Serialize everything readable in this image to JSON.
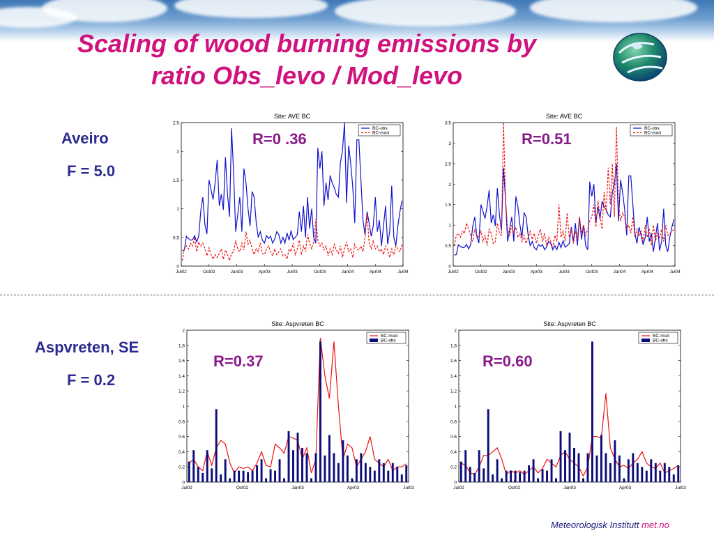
{
  "title_line1": "Scaling of wood burning emissions by",
  "title_line2": "ratio Obs_levo / Mod_levo",
  "sites": [
    {
      "name": "Aveiro",
      "factor": "F = 5.0"
    },
    {
      "name": "Aspvreten, SE",
      "factor": "F = 0.2"
    }
  ],
  "r_labels": [
    "R=0 .36",
    "R=0.51",
    "R=0.37",
    "R=0.60"
  ],
  "footer": {
    "org": "Meteorologisk Institutt",
    "short": "met.no"
  },
  "colors": {
    "title": "#d0127f",
    "obs_line": "#1111cc",
    "mod_line": "#ee1111",
    "bar": "#0c0c7a"
  },
  "chart_data": [
    {
      "type": "line",
      "title": "Site: AVE BC",
      "xlim": [
        0,
        24
      ],
      "ylim": [
        0,
        2.5
      ],
      "yticks": [
        "0",
        "0.5",
        "1",
        "1.5",
        "2",
        "2.5"
      ],
      "xtick_positions": [
        0,
        3,
        6,
        9,
        12,
        15,
        18,
        21,
        24
      ],
      "xtick_labels": [
        "Jul02",
        "Oct02",
        "Jan03",
        "Apr03",
        "Jul03",
        "Oct03",
        "Jan04",
        "Apr04",
        "Jul04"
      ],
      "legend_position": "top-right",
      "series": [
        {
          "name": "BC-obs",
          "style": "solid",
          "color": "#1111cc",
          "values": [
            0.27,
            0.28,
            0.52,
            0.48,
            0.45,
            0.46,
            0.53,
            0.42,
            0.52,
            0.97,
            1.2,
            0.72,
            0.56,
            1.5,
            1.33,
            1.16,
            1.46,
            1.85,
            1.05,
            1.25,
            0.98,
            1.9,
            1.25,
            0.86,
            2.4,
            1.6,
            0.6,
            0.9,
            1.2,
            0.6,
            1.7,
            1.45,
            1.0,
            0.7,
            1.3,
            1.2,
            0.75,
            0.5,
            0.6,
            0.45,
            0.4,
            0.53,
            0.48,
            0.52,
            0.4,
            0.47,
            0.6,
            0.55,
            0.4,
            0.5,
            0.4,
            0.58,
            0.45,
            0.62,
            0.46,
            0.5,
            0.55,
            0.95,
            0.6,
            1.05,
            0.5,
            1.2,
            0.65,
            1.0,
            0.5,
            0.4,
            2.06,
            1.7,
            2.0,
            1.05,
            1.45,
            1.15,
            1.58,
            1.45,
            1.37,
            1.25,
            1.2,
            1.8,
            2.0,
            2.5,
            1.1,
            2.1,
            1.8,
            1.38,
            0.75,
            2.2,
            2.2,
            1.5,
            0.8,
            0.55,
            0.95,
            0.75,
            0.52,
            0.7,
            1.2,
            0.6,
            0.8,
            0.35,
            0.7,
            1.05,
            0.38,
            0.6,
            1.4,
            0.5,
            0.35,
            0.7,
            0.95,
            1.14
          ]
        },
        {
          "name": "BC-mod",
          "style": "dashed",
          "color": "#ee1111",
          "values": [
            0.1,
            0.3,
            0.35,
            0.3,
            0.4,
            0.35,
            0.5,
            0.25,
            0.42,
            0.35,
            0.4,
            0.3,
            0.18,
            0.32,
            0.2,
            0.12,
            0.2,
            0.15,
            0.22,
            0.3,
            0.12,
            0.28,
            0.2,
            0.1,
            0.22,
            0.25,
            0.45,
            0.3,
            0.25,
            0.4,
            0.28,
            0.6,
            0.38,
            0.45,
            0.3,
            0.2,
            0.3,
            0.25,
            0.4,
            0.22,
            0.2,
            0.3,
            0.35,
            0.25,
            0.18,
            0.3,
            0.2,
            0.25,
            0.3,
            0.18,
            0.2,
            0.12,
            0.3,
            0.25,
            0.4,
            0.2,
            0.3,
            0.45,
            0.2,
            0.35,
            0.25,
            0.55,
            0.4,
            0.3,
            0.42,
            0.82,
            0.45,
            0.35,
            0.4,
            0.28,
            0.35,
            0.18,
            0.3,
            0.2,
            0.38,
            0.28,
            0.22,
            0.35,
            0.15,
            0.3,
            0.42,
            0.25,
            0.3,
            0.15,
            0.38,
            0.3,
            0.28,
            0.35,
            0.25,
            0.5,
            0.92,
            0.4,
            0.3,
            0.45,
            0.3,
            0.35,
            0.25,
            0.3,
            0.2,
            0.35,
            0.28,
            0.15,
            0.3,
            0.2,
            0.35,
            0.3,
            0.25,
            0.38
          ]
        }
      ]
    },
    {
      "type": "line",
      "title": "Site: AVE BC",
      "xlim": [
        0,
        24
      ],
      "ylim": [
        0,
        3.5
      ],
      "yticks": [
        "0",
        "0.5",
        "1",
        "1.5",
        "2",
        "2.5",
        "3",
        "3.5"
      ],
      "xtick_positions": [
        0,
        3,
        6,
        9,
        12,
        15,
        18,
        21,
        24
      ],
      "xtick_labels": [
        "Jul02",
        "Oct02",
        "Jan03",
        "Apr03",
        "Jul03",
        "Oct03",
        "Jan04",
        "Apr04",
        "Jul04"
      ],
      "legend_position": "top-right",
      "series": [
        {
          "name": "BC-obs",
          "style": "solid",
          "color": "#1111cc",
          "values": [
            0.27,
            0.28,
            0.52,
            0.48,
            0.45,
            0.46,
            0.53,
            0.42,
            0.52,
            0.97,
            1.2,
            0.72,
            0.56,
            1.5,
            1.33,
            1.16,
            1.46,
            1.85,
            1.05,
            1.25,
            0.98,
            1.9,
            1.25,
            0.86,
            2.4,
            1.6,
            0.6,
            0.9,
            1.2,
            0.6,
            1.7,
            1.45,
            1.0,
            0.7,
            1.3,
            1.2,
            0.75,
            0.5,
            0.6,
            0.45,
            0.4,
            0.53,
            0.48,
            0.52,
            0.4,
            0.47,
            0.6,
            0.55,
            0.4,
            0.5,
            0.4,
            0.58,
            0.45,
            0.62,
            0.46,
            0.5,
            0.55,
            0.95,
            0.6,
            1.05,
            0.5,
            1.2,
            0.65,
            1.0,
            0.5,
            0.4,
            2.06,
            1.7,
            2.0,
            1.05,
            1.45,
            1.15,
            1.58,
            1.45,
            1.37,
            1.25,
            1.2,
            1.8,
            2.0,
            2.5,
            1.1,
            2.1,
            1.8,
            1.38,
            0.75,
            2.2,
            2.2,
            1.5,
            0.8,
            0.55,
            0.95,
            0.75,
            0.52,
            0.7,
            1.2,
            0.6,
            0.8,
            0.35,
            0.7,
            1.05,
            0.38,
            0.6,
            1.4,
            0.5,
            0.35,
            0.7,
            0.95,
            1.14
          ]
        },
        {
          "name": "BC-mod",
          "style": "dashed",
          "color": "#ee1111",
          "values": [
            0.5,
            0.75,
            0.8,
            0.7,
            0.85,
            0.8,
            1.05,
            0.9,
            0.75,
            0.6,
            0.9,
            0.75,
            0.7,
            0.85,
            0.6,
            0.75,
            0.5,
            0.9,
            0.8,
            0.55,
            0.6,
            1.05,
            0.8,
            0.75,
            3.5,
            1.6,
            0.9,
            0.75,
            1.0,
            0.8,
            0.95,
            0.7,
            0.8,
            0.6,
            0.75,
            0.55,
            0.7,
            0.85,
            0.65,
            0.8,
            0.55,
            0.75,
            0.9,
            0.6,
            0.8,
            0.5,
            0.7,
            0.6,
            0.45,
            0.75,
            0.6,
            1.5,
            0.7,
            0.85,
            0.6,
            1.3,
            0.7,
            0.9,
            0.55,
            0.85,
            0.65,
            1.2,
            0.8,
            1.0,
            0.75,
            0.9,
            1.1,
            1.2,
            1.5,
            0.95,
            1.6,
            1.2,
            0.9,
            1.8,
            1.3,
            2.4,
            1.5,
            2.5,
            1.2,
            3.4,
            1.5,
            1.1,
            1.3,
            1.2,
            0.9,
            1.0,
            0.8,
            1.2,
            0.7,
            0.9,
            0.75,
            0.85,
            0.6,
            1.0,
            0.7,
            0.9,
            0.5,
            1.0,
            0.6,
            0.8,
            0.7,
            0.9,
            0.6,
            1.0,
            0.75,
            0.8,
            0.85,
            0.9
          ]
        }
      ]
    },
    {
      "type": "bar",
      "title": "Site: Aspvreten BC",
      "xlim": [
        0,
        12
      ],
      "ylim": [
        0,
        2
      ],
      "yticks": [
        "0",
        "0.2",
        "0.4",
        "0.6",
        "0.8",
        "1",
        "1.2",
        "1.4",
        "1.6",
        "1.8",
        "2"
      ],
      "xtick_positions": [
        0,
        3,
        6,
        9,
        12
      ],
      "xtick_labels": [
        "Jul02",
        "Oct02",
        "Jan03",
        "Apr03",
        "Jul03"
      ],
      "legend_position": "top-right",
      "series": [
        {
          "name": "BC-mod",
          "style": "line",
          "color": "#ee1111",
          "values": [
            0.25,
            0.3,
            0.2,
            0.15,
            0.4,
            0.22,
            0.45,
            0.55,
            0.5,
            0.25,
            0.12,
            0.2,
            0.18,
            0.2,
            0.15,
            0.25,
            0.4,
            0.22,
            0.2,
            0.5,
            0.45,
            0.38,
            0.6,
            0.58,
            0.55,
            0.3,
            0.45,
            0.12,
            0.3,
            1.9,
            1.4,
            1.1,
            1.85,
            1.0,
            0.3,
            0.5,
            0.45,
            0.2,
            0.3,
            0.4,
            0.6,
            0.3,
            0.25,
            0.2,
            0.3,
            0.15,
            0.2,
            0.2,
            0.24
          ]
        },
        {
          "name": "BC-obs",
          "style": "bar",
          "color": "#0c0c7a",
          "values": [
            0.27,
            0.42,
            0.2,
            0.12,
            0.42,
            0.18,
            0.96,
            0.1,
            0.3,
            0.05,
            0.15,
            0.15,
            0.15,
            0.13,
            0.15,
            0.22,
            0.3,
            0.05,
            0.17,
            0.15,
            0.3,
            0.05,
            0.67,
            0.42,
            0.65,
            0.45,
            0.38,
            0.05,
            0.38,
            1.85,
            0.35,
            0.62,
            0.38,
            0.25,
            0.55,
            0.35,
            0.05,
            0.3,
            0.38,
            0.25,
            0.2,
            0.15,
            0.3,
            0.25,
            0.15,
            0.25,
            0.2,
            0.1,
            0.22
          ]
        }
      ]
    },
    {
      "type": "bar",
      "title": "Site: Aspvreten BC",
      "xlim": [
        0,
        12
      ],
      "ylim": [
        0,
        2
      ],
      "yticks": [
        "0",
        "0.2",
        "0.4",
        "0.6",
        "0.8",
        "1",
        "1.2",
        "1.4",
        "1.6",
        "1.8",
        "2"
      ],
      "xtick_positions": [
        0,
        3,
        6,
        9,
        12
      ],
      "xtick_labels": [
        "Jul02",
        "Oct02",
        "Jan03",
        "Apr03",
        "Jul03"
      ],
      "legend_position": "top-right",
      "series": [
        {
          "name": "BC-mod",
          "style": "line",
          "color": "#ee1111",
          "values": [
            0.25,
            0.22,
            0.12,
            0.1,
            0.2,
            0.35,
            0.35,
            0.4,
            0.45,
            0.3,
            0.1,
            0.15,
            0.12,
            0.15,
            0.1,
            0.15,
            0.2,
            0.12,
            0.18,
            0.3,
            0.25,
            0.2,
            0.35,
            0.4,
            0.3,
            0.25,
            0.2,
            0.08,
            0.2,
            0.6,
            0.6,
            0.58,
            1.17,
            0.45,
            0.3,
            0.2,
            0.22,
            0.18,
            0.25,
            0.3,
            0.4,
            0.25,
            0.2,
            0.18,
            0.25,
            0.12,
            0.15,
            0.18,
            0.22
          ]
        },
        {
          "name": "BC-obs",
          "style": "bar",
          "color": "#0c0c7a",
          "values": [
            0.27,
            0.42,
            0.2,
            0.12,
            0.42,
            0.18,
            0.96,
            0.1,
            0.3,
            0.05,
            0.15,
            0.15,
            0.15,
            0.13,
            0.15,
            0.22,
            0.3,
            0.05,
            0.17,
            0.15,
            0.3,
            0.05,
            0.67,
            0.42,
            0.65,
            0.45,
            0.38,
            0.05,
            0.38,
            1.85,
            0.35,
            0.62,
            0.38,
            0.25,
            0.55,
            0.35,
            0.05,
            0.3,
            0.38,
            0.25,
            0.2,
            0.15,
            0.3,
            0.25,
            0.15,
            0.25,
            0.2,
            0.1,
            0.22
          ]
        }
      ]
    }
  ]
}
